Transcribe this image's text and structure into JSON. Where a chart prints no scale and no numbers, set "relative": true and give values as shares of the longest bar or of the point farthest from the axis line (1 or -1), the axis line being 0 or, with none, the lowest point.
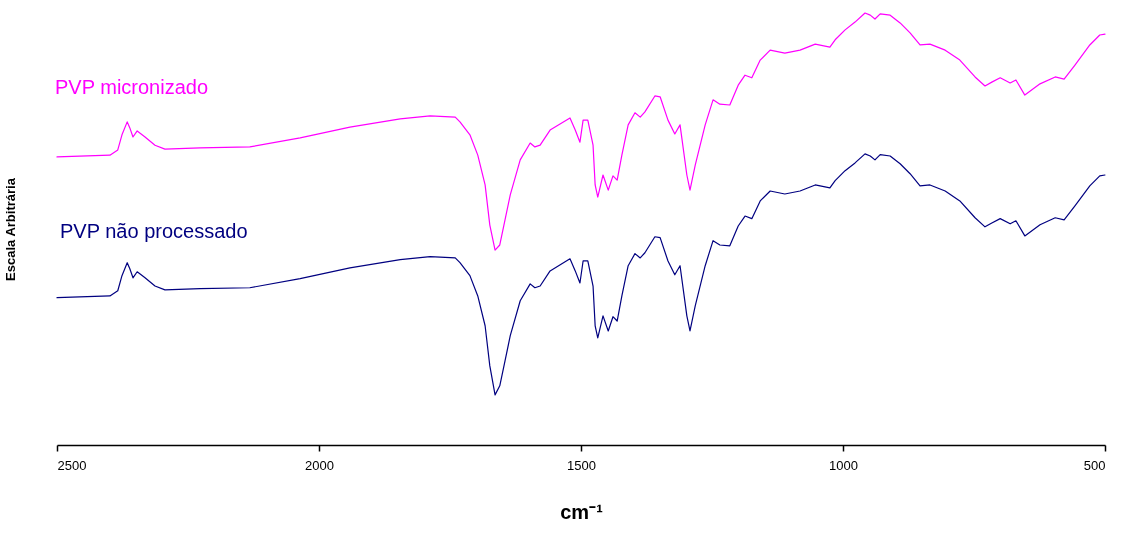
{
  "chart_data": {
    "type": "line",
    "relative": true,
    "xlabel": "cm⁻¹",
    "ylabel": "Escala Arbitrária",
    "grid": false,
    "xlim": [
      2500,
      500
    ],
    "xticks": [
      2500,
      2000,
      1500,
      1000,
      500
    ],
    "x": [
      2500,
      2399,
      2384,
      2376,
      2366,
      2361,
      2355,
      2347,
      2332,
      2313,
      2294,
      2227,
      2132,
      2036,
      1941,
      1845,
      1788,
      1740,
      1731,
      1712,
      1697,
      1683,
      1674,
      1664,
      1655,
      1645,
      1635,
      1616,
      1597,
      1588,
      1578,
      1559,
      1521,
      1511,
      1502,
      1496,
      1487,
      1477,
      1473,
      1468,
      1458,
      1448,
      1439,
      1431,
      1422,
      1410,
      1397,
      1387,
      1378,
      1359,
      1349,
      1334,
      1321,
      1311,
      1298,
      1292,
      1282,
      1263,
      1248,
      1235,
      1216,
      1200,
      1187,
      1174,
      1158,
      1139,
      1111,
      1082,
      1053,
      1025,
      1015,
      996,
      977,
      958,
      948,
      939,
      929,
      910,
      891,
      872,
      853,
      834,
      805,
      777,
      748,
      729,
      716,
      700,
      681,
      670,
      653,
      624,
      595,
      578,
      557,
      529,
      510,
      500
    ],
    "series": [
      {
        "name": "PVP micronizado",
        "color": "#ff00ff",
        "values": [
          0.667,
          0.671,
          0.683,
          0.718,
          0.748,
          0.734,
          0.713,
          0.727,
          0.713,
          0.694,
          0.685,
          0.688,
          0.69,
          0.711,
          0.736,
          0.755,
          0.762,
          0.759,
          0.748,
          0.718,
          0.671,
          0.602,
          0.509,
          0.451,
          0.463,
          0.521,
          0.579,
          0.66,
          0.699,
          0.69,
          0.694,
          0.729,
          0.757,
          0.729,
          0.701,
          0.752,
          0.752,
          0.694,
          0.602,
          0.574,
          0.625,
          0.59,
          0.623,
          0.613,
          0.671,
          0.741,
          0.769,
          0.759,
          0.771,
          0.808,
          0.806,
          0.752,
          0.72,
          0.741,
          0.625,
          0.59,
          0.648,
          0.741,
          0.799,
          0.789,
          0.787,
          0.833,
          0.856,
          0.85,
          0.891,
          0.914,
          0.907,
          0.914,
          0.928,
          0.921,
          0.938,
          0.961,
          0.979,
          1.0,
          0.995,
          0.986,
          0.998,
          0.995,
          0.977,
          0.954,
          0.926,
          0.928,
          0.914,
          0.891,
          0.852,
          0.831,
          0.84,
          0.85,
          0.838,
          0.845,
          0.81,
          0.836,
          0.852,
          0.847,
          0.88,
          0.926,
          0.949,
          0.951
        ]
      },
      {
        "name": "PVP não processado",
        "color": "#000080",
        "values": [
          0.341,
          0.345,
          0.357,
          0.392,
          0.422,
          0.408,
          0.387,
          0.401,
          0.387,
          0.368,
          0.359,
          0.362,
          0.364,
          0.385,
          0.41,
          0.429,
          0.436,
          0.433,
          0.422,
          0.392,
          0.345,
          0.276,
          0.183,
          0.116,
          0.137,
          0.195,
          0.253,
          0.334,
          0.373,
          0.364,
          0.368,
          0.403,
          0.431,
          0.403,
          0.375,
          0.426,
          0.426,
          0.368,
          0.276,
          0.248,
          0.299,
          0.264,
          0.297,
          0.287,
          0.345,
          0.415,
          0.443,
          0.433,
          0.445,
          0.482,
          0.48,
          0.426,
          0.394,
          0.415,
          0.299,
          0.264,
          0.322,
          0.415,
          0.473,
          0.463,
          0.461,
          0.507,
          0.53,
          0.524,
          0.565,
          0.588,
          0.581,
          0.588,
          0.602,
          0.595,
          0.612,
          0.635,
          0.653,
          0.674,
          0.669,
          0.66,
          0.672,
          0.669,
          0.651,
          0.628,
          0.6,
          0.602,
          0.588,
          0.565,
          0.526,
          0.505,
          0.514,
          0.524,
          0.512,
          0.519,
          0.484,
          0.51,
          0.526,
          0.521,
          0.554,
          0.6,
          0.623,
          0.625
        ]
      }
    ]
  }
}
